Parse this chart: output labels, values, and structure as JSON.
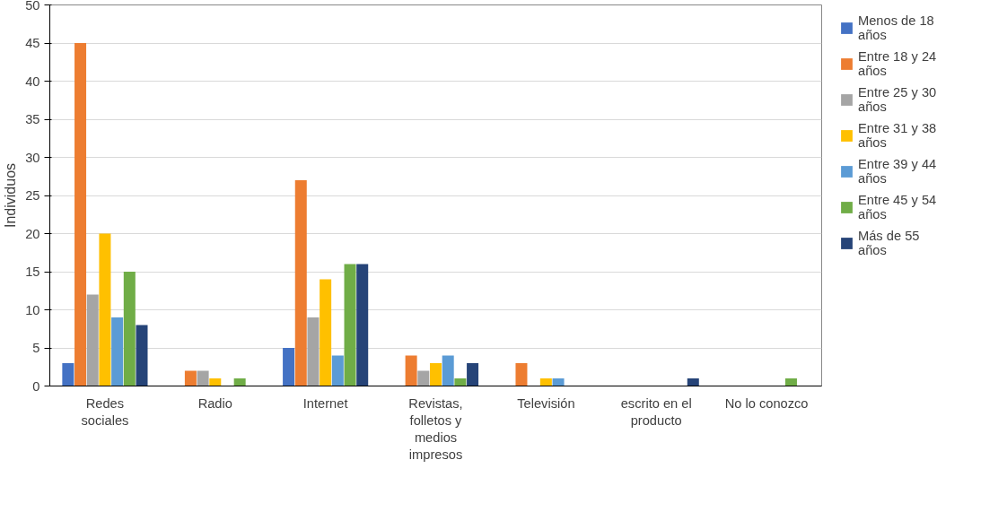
{
  "chart_data": {
    "type": "bar",
    "ylabel": "Individuos",
    "categories": [
      "Redes sociales",
      "Radio",
      "Internet",
      "Revistas, folletos y medios impresos",
      "Televisión",
      "escrito en el producto",
      "No lo conozco"
    ],
    "series": [
      {
        "name": "Menos de 18 años",
        "color": "#4472c4",
        "values": [
          3,
          0,
          5,
          0,
          0,
          0,
          0
        ]
      },
      {
        "name": "Entre 18 y 24 años",
        "color": "#ed7d31",
        "values": [
          45,
          2,
          27,
          4,
          3,
          0,
          0
        ]
      },
      {
        "name": "Entre 25 y 30 años",
        "color": "#a5a5a5",
        "values": [
          12,
          2,
          9,
          2,
          0,
          0,
          0
        ]
      },
      {
        "name": "Entre 31 y 38 años",
        "color": "#ffc000",
        "values": [
          20,
          1,
          14,
          3,
          1,
          0,
          0
        ]
      },
      {
        "name": "Entre 39 y 44 años",
        "color": "#5b9bd5",
        "values": [
          9,
          0,
          4,
          4,
          1,
          0,
          0
        ]
      },
      {
        "name": "Entre 45 y 54 años",
        "color": "#70ad47",
        "values": [
          15,
          1,
          16,
          1,
          0,
          0,
          1
        ]
      },
      {
        "name": "Más de 55 años",
        "color": "#264478",
        "values": [
          8,
          0,
          16,
          3,
          0,
          1,
          0
        ]
      }
    ],
    "ylim": [
      0,
      50
    ],
    "yticks": [
      0,
      5,
      10,
      15,
      20,
      25,
      30,
      35,
      40,
      45,
      50
    ],
    "grid": "y",
    "legend": "right"
  }
}
